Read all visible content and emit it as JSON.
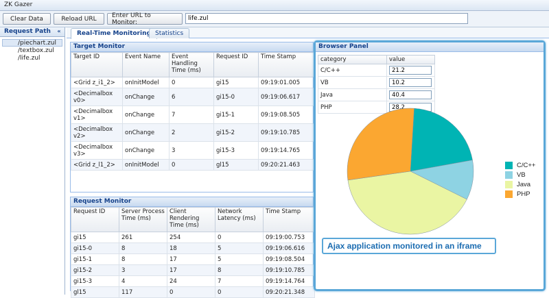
{
  "window": {
    "title": "ZK Gazer"
  },
  "toolbar": {
    "clear_label": "Clear Data",
    "reload_label": "Reload URL",
    "enter_label": "Enter URL to Monitor:",
    "url_value": "life.zul"
  },
  "sidebar": {
    "header": "Request Path",
    "collapse_glyph": "«",
    "items": [
      {
        "label": "/piechart.zul"
      },
      {
        "label": "/textbox.zul"
      },
      {
        "label": "/life.zul"
      }
    ]
  },
  "tabs": [
    {
      "label": "Real-Time Monitoring"
    },
    {
      "label": "Statistics"
    }
  ],
  "target_monitor": {
    "title": "Target Monitor",
    "headers": [
      "Target ID",
      "Event Name",
      "Event Handling Time (ms)",
      "Request ID",
      "Time Stamp"
    ],
    "rows": [
      [
        "<Grid z_i1_2>",
        "onInitModel",
        "0",
        "gi15",
        "09:19:01.005"
      ],
      [
        "<Decimalbox v0>",
        "onChange",
        "6",
        "gi15-0",
        "09:19:06.617"
      ],
      [
        "<Decimalbox v1>",
        "onChange",
        "7",
        "gi15-1",
        "09:19:08.505"
      ],
      [
        "<Decimalbox v2>",
        "onChange",
        "2",
        "gi15-2",
        "09:19:10.785"
      ],
      [
        "<Decimalbox v3>",
        "onChange",
        "3",
        "gi15-3",
        "09:19:14.765"
      ],
      [
        "<Grid z_l1_2>",
        "onInitModel",
        "0",
        "gl15",
        "09:20:21.463"
      ]
    ]
  },
  "request_monitor": {
    "title": "Request Monitor",
    "headers": [
      "Request ID",
      "Server Process Time (ms)",
      "Client Rendering Time (ms)",
      "Network Latency (ms)",
      "Time Stamp"
    ],
    "rows": [
      [
        "gi15",
        "261",
        "254",
        "0",
        "09:19:00.753"
      ],
      [
        "gi15-0",
        "8",
        "18",
        "5",
        "09:19:06.616"
      ],
      [
        "gi15-1",
        "8",
        "17",
        "5",
        "09:19:08.504"
      ],
      [
        "gi15-2",
        "3",
        "17",
        "8",
        "09:19:10.785"
      ],
      [
        "gi15-3",
        "4",
        "24",
        "7",
        "09:19:14.764"
      ],
      [
        "gl15",
        "117",
        "0",
        "0",
        "09:20:21.348"
      ]
    ]
  },
  "browser_panel": {
    "title": "Browser Panel",
    "headers": [
      "category",
      "value"
    ],
    "rows": [
      {
        "category": "C/C++",
        "value": "21.2"
      },
      {
        "category": "VB",
        "value": "10.2"
      },
      {
        "category": "Java",
        "value": "40.4"
      },
      {
        "category": "PHP",
        "value": "28.2"
      }
    ],
    "callout": "Ajax application monitored in an iframe"
  },
  "chart_data": {
    "type": "pie",
    "categories": [
      "C/C++",
      "VB",
      "Java",
      "PHP"
    ],
    "values": [
      21.2,
      10.2,
      40.4,
      28.2
    ],
    "colors": [
      "#00b4b4",
      "#8ed3e3",
      "#eaf5a3",
      "#fba731"
    ],
    "legend": "right"
  }
}
